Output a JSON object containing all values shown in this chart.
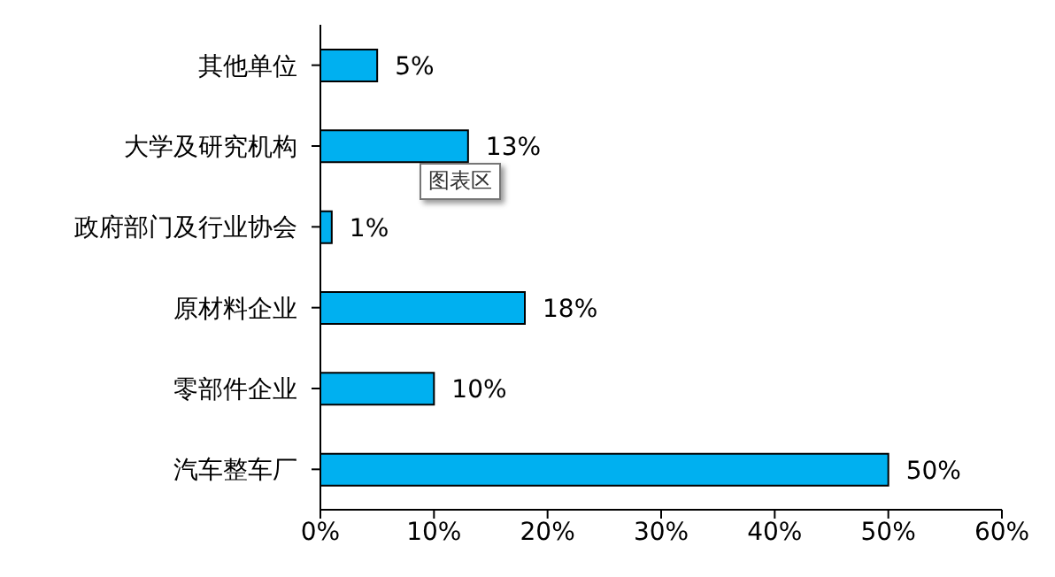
{
  "chart_data": {
    "type": "bar",
    "orientation": "horizontal",
    "categories": [
      "其他单位",
      "大学及研究机构",
      "政府部门及行业协会",
      "原材料企业",
      "零部件企业",
      "汽车整车厂"
    ],
    "values": [
      5,
      13,
      1,
      18,
      10,
      50
    ],
    "color": "#00b0f0",
    "value_labels": [
      "5%",
      "13%",
      "1%",
      "18%",
      "10%",
      "50%"
    ],
    "xlim": [
      0,
      60
    ],
    "xticks": [
      {
        "value": 0,
        "label": "0%"
      },
      {
        "value": 10,
        "label": "10%"
      },
      {
        "value": 20,
        "label": "20%"
      },
      {
        "value": 30,
        "label": "30%"
      },
      {
        "value": 40,
        "label": "40%"
      },
      {
        "value": 50,
        "label": "50%"
      },
      {
        "value": 60,
        "label": "60%"
      }
    ],
    "grid": false,
    "legend": false,
    "annotations": [
      "图表区"
    ]
  }
}
